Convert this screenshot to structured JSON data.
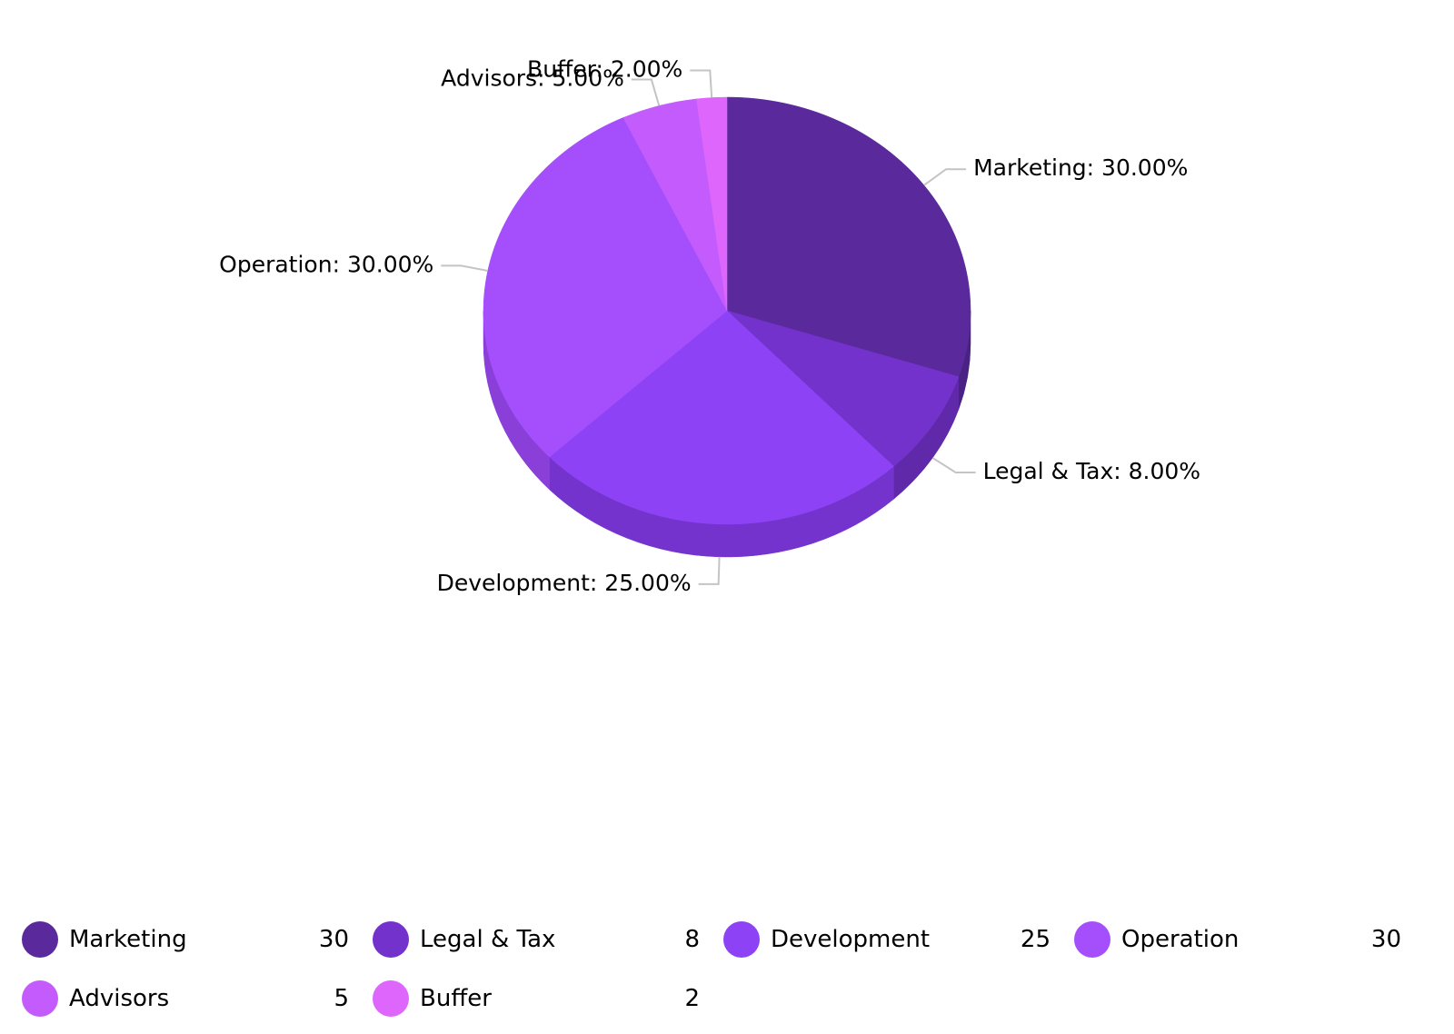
{
  "chart_data": {
    "type": "pie",
    "style": "3d",
    "title": "",
    "label_format": "name: percent with two decimals",
    "legend_position": "bottom",
    "slices": [
      {
        "name": "Marketing",
        "value": 30,
        "label": "Marketing: 30.00%",
        "color": "#5a2a9c",
        "side_color": "#4a2283"
      },
      {
        "name": "Legal & Tax",
        "value": 8,
        "label": "Legal & Tax: 8.00%",
        "color": "#7332cc",
        "side_color": "#5f29aa"
      },
      {
        "name": "Development",
        "value": 25,
        "label": "Development: 25.00%",
        "color": "#8d42f6",
        "side_color": "#7333cc"
      },
      {
        "name": "Operation",
        "value": 30,
        "label": "Operation: 30.00%",
        "color": "#a54ffc",
        "side_color": "#8a3fd8"
      },
      {
        "name": "Advisors",
        "value": 5,
        "label": "Advisors: 5.00%",
        "color": "#c45cfd",
        "side_color": "#a84ad8"
      },
      {
        "name": "Buffer",
        "value": 2,
        "label": "Buffer: 2.00%",
        "color": "#de66fd",
        "side_color": "#bf55da"
      }
    ]
  },
  "legend": {
    "items": [
      {
        "name": "Marketing",
        "value": "30"
      },
      {
        "name": "Legal & Tax",
        "value": "8"
      },
      {
        "name": "Development",
        "value": "25"
      },
      {
        "name": "Operation",
        "value": "30"
      },
      {
        "name": "Advisors",
        "value": "5"
      },
      {
        "name": "Buffer",
        "value": "2"
      }
    ]
  }
}
